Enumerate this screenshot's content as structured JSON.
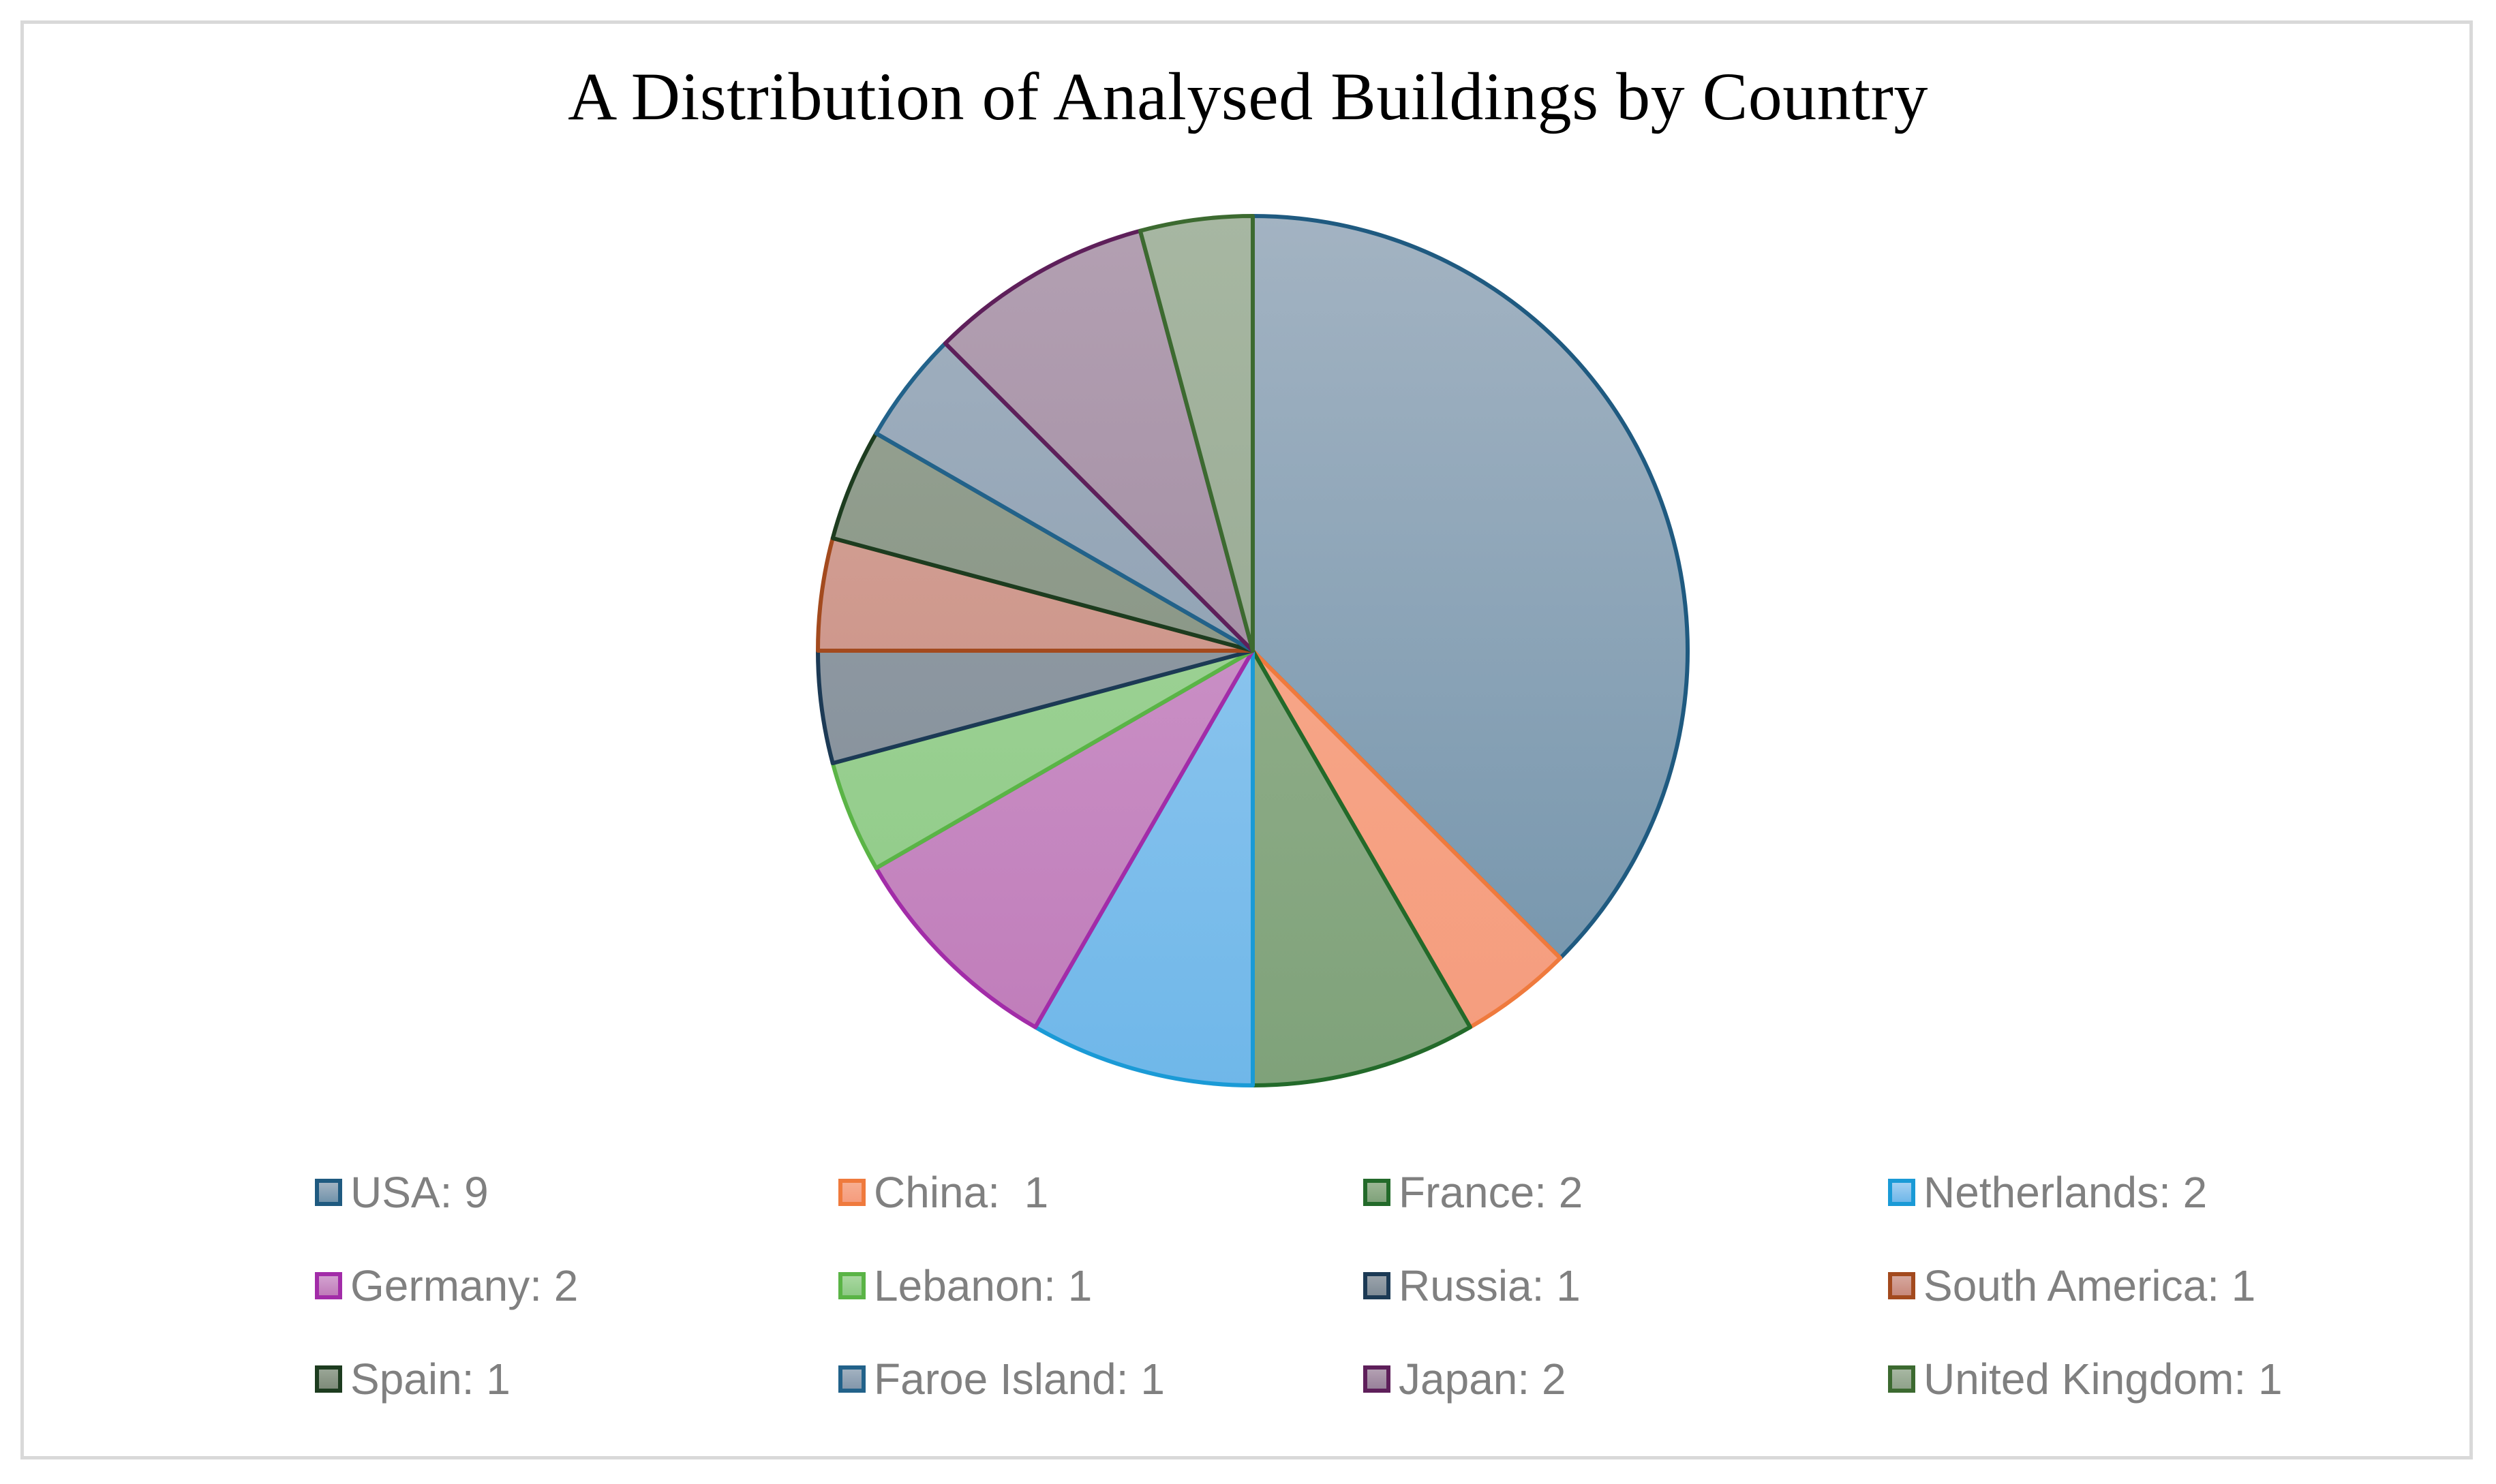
{
  "chart_data": {
    "type": "pie",
    "title": "A Distribution of Analysed Buildings by Country",
    "legend_position": "bottom",
    "slices": [
      {
        "label": "USA",
        "value": 9,
        "legend": "USA: 9",
        "fill_top": "#a3b3c2",
        "fill_bottom": "#7193ab",
        "stroke": "#1f5a80"
      },
      {
        "label": "China",
        "value": 1,
        "legend": "China:  1",
        "fill_top": "#f7ae91",
        "fill_bottom": "#f59c7d",
        "stroke": "#ef7a3d"
      },
      {
        "label": "France",
        "value": 2,
        "legend": "France: 2",
        "fill_top": "#9cb694",
        "fill_bottom": "#7fa27a",
        "stroke": "#236a2a"
      },
      {
        "label": "Netherlands",
        "value": 2,
        "legend": "Netherlands: 2",
        "fill_top": "#a3d0f2",
        "fill_bottom": "#6fb7e9",
        "stroke": "#1a9ad6"
      },
      {
        "label": "Germany",
        "value": 2,
        "legend": "Germany: 2",
        "fill_top": "#d3a2d0",
        "fill_bottom": "#bf7bb9",
        "stroke": "#a22ca8"
      },
      {
        "label": "Lebanon",
        "value": 1,
        "legend": "Lebanon: 1",
        "fill_top": "#a8d8a0",
        "fill_bottom": "#8dc985",
        "stroke": "#5ab446"
      },
      {
        "label": "Russia",
        "value": 1,
        "legend": "Russia: 1",
        "fill_top": "#9aa3ab",
        "fill_bottom": "#7f8b96",
        "stroke": "#1c3a55"
      },
      {
        "label": "South America",
        "value": 1,
        "legend": "South America: 1",
        "fill_top": "#d6a89e",
        "fill_bottom": "#c7887b",
        "stroke": "#a34a1e"
      },
      {
        "label": "Spain",
        "value": 1,
        "legend": "Spain: 1",
        "fill_top": "#99a596",
        "fill_bottom": "#7e8b7a",
        "stroke": "#1d3c1f"
      },
      {
        "label": "Faroe Island",
        "value": 1,
        "legend": "Faroe Island: 1",
        "fill_top": "#a2b1c0",
        "fill_bottom": "#8397ab",
        "stroke": "#22628a"
      },
      {
        "label": "Japan",
        "value": 2,
        "legend": "Japan: 2",
        "fill_top": "#b3a0b2",
        "fill_bottom": "#98819a",
        "stroke": "#5e1f5a"
      },
      {
        "label": "United Kingdom",
        "value": 1,
        "legend": "United Kingdom: 1",
        "fill_top": "#a7b7a2",
        "fill_bottom": "#8fa28a",
        "stroke": "#3c6a30"
      }
    ]
  }
}
